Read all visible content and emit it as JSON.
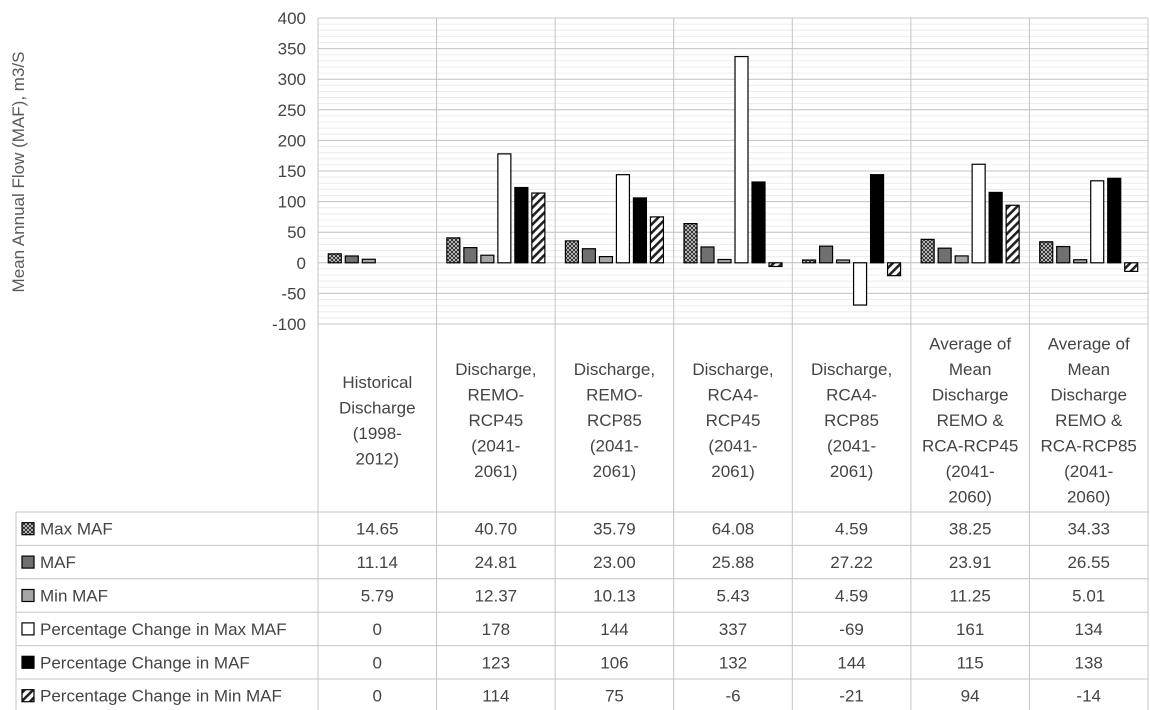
{
  "chart_data": {
    "type": "bar",
    "ylabel": "Mean Annual Flow (MAF), m3/S",
    "ylim": [
      -100,
      400
    ],
    "yticks": [
      400,
      350,
      300,
      250,
      200,
      150,
      100,
      50,
      0,
      -50,
      -100
    ],
    "grid": true,
    "legend": "data-table-rows",
    "categories": [
      [
        "Historical",
        "Discharge",
        "(1998-",
        "2012)"
      ],
      [
        "Discharge,",
        "REMO-",
        "RCP45",
        "(2041-",
        "2061)"
      ],
      [
        "Discharge,",
        "REMO-",
        "RCP85",
        "(2041-",
        "2061)"
      ],
      [
        "Discharge,",
        "RCA4-",
        "RCP45",
        "(2041-",
        "2061)"
      ],
      [
        "Discharge,",
        "RCA4-",
        "RCP85",
        "(2041-",
        "2061)"
      ],
      [
        "Average of",
        "Mean",
        "Discharge",
        "REMO &",
        "RCA-RCP45",
        "(2041-",
        "2060)"
      ],
      [
        "Average of",
        "Mean",
        "Discharge",
        "REMO &",
        "RCA-RCP85",
        "(2041-",
        "2060)"
      ]
    ],
    "series": [
      {
        "name": "Max MAF",
        "fill": "crosshatch",
        "values": [
          14.65,
          40.7,
          35.79,
          64.08,
          4.59,
          38.25,
          34.33
        ],
        "labels": [
          "14.65",
          "40.70",
          "35.79",
          "64.08",
          "4.59",
          "38.25",
          "34.33"
        ]
      },
      {
        "name": "MAF",
        "fill": "#707070",
        "values": [
          11.14,
          24.81,
          23.0,
          25.88,
          27.22,
          23.91,
          26.55
        ],
        "labels": [
          "11.14",
          "24.81",
          "23.00",
          "25.88",
          "27.22",
          "23.91",
          "26.55"
        ]
      },
      {
        "name": "Min MAF",
        "fill": "#a6a6a6",
        "values": [
          5.79,
          12.37,
          10.13,
          5.43,
          4.59,
          11.25,
          5.01
        ],
        "labels": [
          "5.79",
          "12.37",
          "10.13",
          "5.43",
          "4.59",
          "11.25",
          "5.01"
        ]
      },
      {
        "name": "Percentage Change in Max MAF",
        "fill": "#ffffff",
        "values": [
          0,
          178,
          144,
          337,
          -69,
          161,
          134
        ],
        "labels": [
          "0",
          "178",
          "144",
          "337",
          "-69",
          "161",
          "134"
        ]
      },
      {
        "name": "Percentage Change in MAF",
        "fill": "#000000",
        "values": [
          0,
          123,
          106,
          132,
          144,
          115,
          138
        ],
        "labels": [
          "0",
          "123",
          "106",
          "132",
          "144",
          "115",
          "138"
        ]
      },
      {
        "name": "Percentage Change in Min MAF",
        "fill": "diagonal-stripes",
        "values": [
          0,
          114,
          75,
          -6,
          -21,
          94,
          -14
        ],
        "labels": [
          "0",
          "114",
          "75",
          "-6",
          "-21",
          "94",
          "-14"
        ]
      }
    ]
  }
}
